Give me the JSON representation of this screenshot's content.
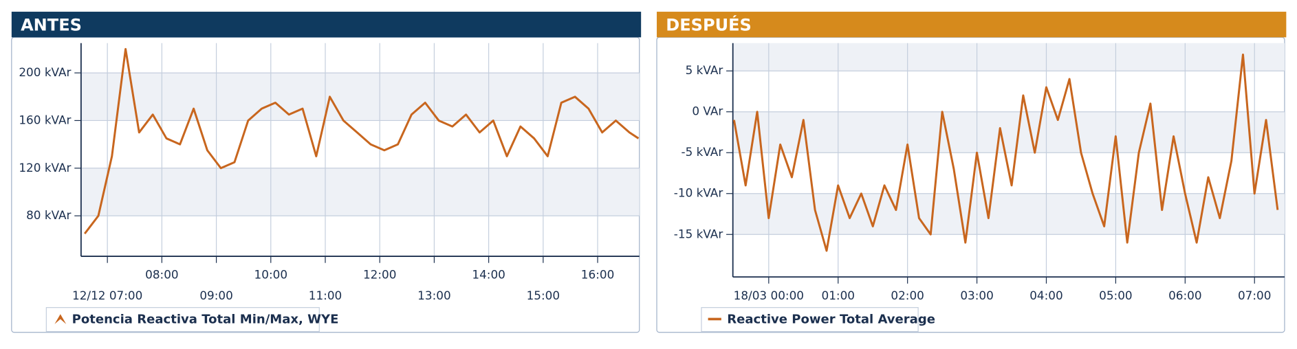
{
  "chart_data": [
    {
      "type": "line",
      "title": "ANTES",
      "header_color": "#0f3a5f",
      "x": [
        "06:35",
        "06:50",
        "07:05",
        "07:20",
        "07:35",
        "07:50",
        "08:05",
        "08:20",
        "08:35",
        "08:50",
        "09:05",
        "09:20",
        "09:35",
        "09:50",
        "10:05",
        "10:20",
        "10:35",
        "10:50",
        "11:05",
        "11:20",
        "11:35",
        "11:50",
        "12:05",
        "12:20",
        "12:35",
        "12:50",
        "13:05",
        "13:20",
        "13:35",
        "13:50",
        "14:05",
        "14:20",
        "14:35",
        "14:50",
        "15:05",
        "15:20",
        "15:35",
        "15:50",
        "16:05",
        "16:20",
        "16:35",
        "16:45"
      ],
      "series": [
        {
          "name": "Potencia Reactiva Total Min/Max, WYE",
          "color": "#c8661e",
          "values": [
            65,
            80,
            130,
            220,
            150,
            165,
            145,
            140,
            170,
            135,
            120,
            125,
            160,
            170,
            175,
            165,
            170,
            130,
            180,
            160,
            150,
            140,
            135,
            140,
            165,
            175,
            160,
            155,
            165,
            150,
            160,
            130,
            155,
            145,
            130,
            175,
            180,
            170,
            150,
            160,
            150,
            145
          ]
        }
      ],
      "xlim": [
        "06:31",
        "16:46"
      ],
      "xticks": [
        {
          "value": "07:00",
          "label": "12/12 07:00"
        },
        {
          "value": "08:00",
          "label": "08:00"
        },
        {
          "value": "09:00",
          "label": "09:00"
        },
        {
          "value": "10:00",
          "label": "10:00"
        },
        {
          "value": "11:00",
          "label": "11:00"
        },
        {
          "value": "12:00",
          "label": "12:00"
        },
        {
          "value": "13:00",
          "label": "13:00"
        },
        {
          "value": "14:00",
          "label": "14:00"
        },
        {
          "value": "15:00",
          "label": "15:00"
        },
        {
          "value": "16:00",
          "label": "16:00"
        }
      ],
      "ylim": [
        46,
        225
      ],
      "yticks": [
        {
          "value": 80,
          "label": "80 kVAr"
        },
        {
          "value": 120,
          "label": "120 kVAr"
        },
        {
          "value": 160,
          "label": "160 kVAr"
        },
        {
          "value": 200,
          "label": "200 kVAr"
        }
      ],
      "grid": true
    },
    {
      "type": "line",
      "title": "DESPUÉS",
      "header_color": "#d68a1c",
      "x": [
        "23:30",
        "23:40",
        "23:50",
        "00:00",
        "00:10",
        "00:20",
        "00:30",
        "00:40",
        "00:50",
        "01:00",
        "01:10",
        "01:20",
        "01:30",
        "01:40",
        "01:50",
        "02:00",
        "02:10",
        "02:20",
        "02:30",
        "02:40",
        "02:50",
        "03:00",
        "03:10",
        "03:20",
        "03:30",
        "03:40",
        "03:50",
        "04:00",
        "04:10",
        "04:20",
        "04:30",
        "04:40",
        "04:50",
        "05:00",
        "05:10",
        "05:20",
        "05:30",
        "05:40",
        "05:50",
        "06:00",
        "06:10",
        "06:20",
        "06:30",
        "06:40",
        "06:50",
        "07:00",
        "07:10",
        "07:20"
      ],
      "series": [
        {
          "name": "Reactive Power Total Average",
          "color": "#c8661e",
          "values": [
            -1,
            -9,
            0,
            -13,
            -4,
            -8,
            -1,
            -12,
            -17,
            -9,
            -13,
            -10,
            -14,
            -9,
            -12,
            -4,
            -13,
            -15,
            0,
            -7,
            -16,
            -5,
            -13,
            -2,
            -9,
            2,
            -5,
            3,
            -1,
            4,
            -5,
            -10,
            -14,
            -3,
            -16,
            -5,
            1,
            -12,
            -3,
            -10,
            -16,
            -8,
            -13,
            -6,
            7,
            -10,
            -1,
            -12
          ]
        }
      ],
      "xlim": [
        "23:29",
        "07:26"
      ],
      "xticks": [
        {
          "value": "00:00",
          "label": "18/03 00:00"
        },
        {
          "value": "01:00",
          "label": "01:00"
        },
        {
          "value": "02:00",
          "label": "02:00"
        },
        {
          "value": "03:00",
          "label": "03:00"
        },
        {
          "value": "04:00",
          "label": "04:00"
        },
        {
          "value": "05:00",
          "label": "05:00"
        },
        {
          "value": "06:00",
          "label": "06:00"
        },
        {
          "value": "07:00",
          "label": "07:00"
        }
      ],
      "ylim": [
        -20.2,
        8.4
      ],
      "yticks": [
        {
          "value": -15,
          "label": "-15 kVAr"
        },
        {
          "value": -10,
          "label": "-10 kVAr"
        },
        {
          "value": -5,
          "label": "-5 kVAr"
        },
        {
          "value": 0,
          "label": "0 VAr"
        },
        {
          "value": 5,
          "label": "5 kVAr"
        }
      ],
      "grid": true
    }
  ]
}
